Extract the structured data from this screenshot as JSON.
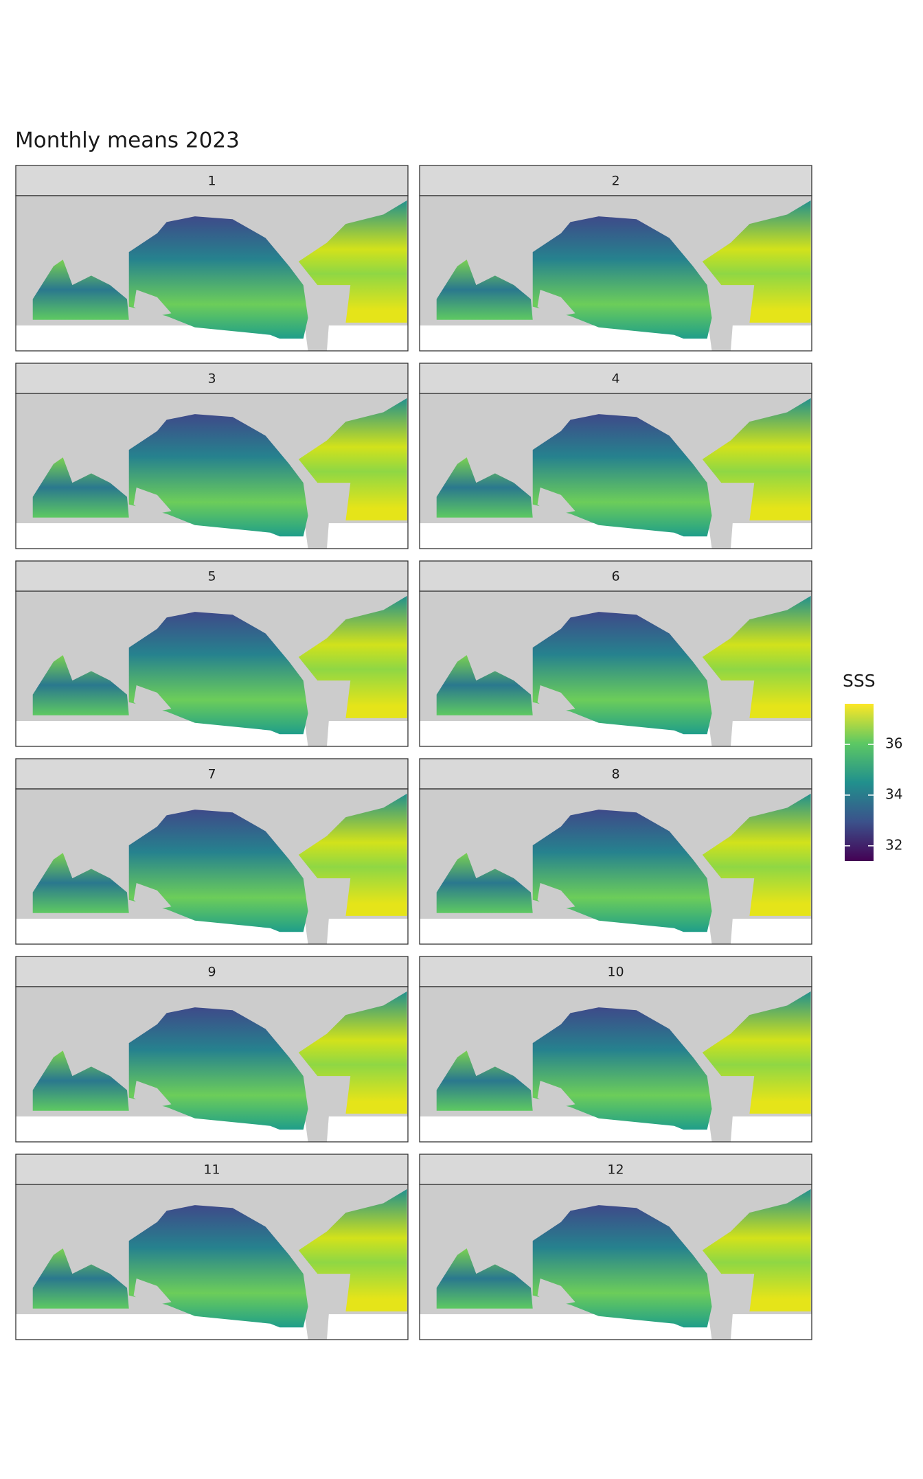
{
  "chart_data": {
    "type": "raster-map-facets",
    "title": "Monthly means 2023",
    "panels": [
      "1",
      "2",
      "3",
      "4",
      "5",
      "6",
      "7",
      "8",
      "9",
      "10",
      "11",
      "12"
    ],
    "legend": {
      "title": "SSS",
      "lim": [
        31.4,
        37.6
      ],
      "ticks": [
        32,
        34,
        36
      ],
      "colors": [
        "#440154",
        "#3b528b",
        "#21908d",
        "#5dc863",
        "#fde725"
      ]
    }
  }
}
